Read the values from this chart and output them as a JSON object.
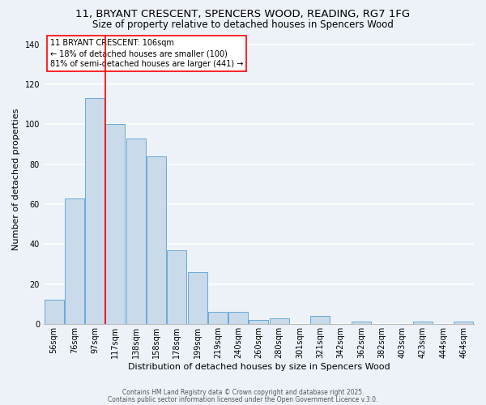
{
  "title1": "11, BRYANT CRESCENT, SPENCERS WOOD, READING, RG7 1FG",
  "title2": "Size of property relative to detached houses in Spencers Wood",
  "xlabel": "Distribution of detached houses by size in Spencers Wood",
  "ylabel": "Number of detached properties",
  "bar_labels": [
    "56sqm",
    "76sqm",
    "97sqm",
    "117sqm",
    "138sqm",
    "158sqm",
    "178sqm",
    "199sqm",
    "219sqm",
    "240sqm",
    "260sqm",
    "280sqm",
    "301sqm",
    "321sqm",
    "342sqm",
    "362sqm",
    "382sqm",
    "403sqm",
    "423sqm",
    "444sqm",
    "464sqm"
  ],
  "bar_values": [
    12,
    63,
    113,
    100,
    93,
    84,
    37,
    26,
    6,
    6,
    2,
    3,
    0,
    4,
    0,
    1,
    0,
    0,
    1,
    0,
    1
  ],
  "bar_color": "#c9daea",
  "bar_edge_color": "#6aaad4",
  "background_color": "#edf2f8",
  "grid_color": "#ffffff",
  "red_line_x": 2.5,
  "ylim": [
    0,
    145
  ],
  "yticks": [
    0,
    20,
    40,
    60,
    80,
    100,
    120,
    140
  ],
  "annotation_title": "11 BRYANT CRESCENT: 106sqm",
  "annotation_line1": "← 18% of detached houses are smaller (100)",
  "annotation_line2": "81% of semi-detached houses are larger (441) →",
  "footer1": "Contains HM Land Registry data © Crown copyright and database right 2025.",
  "footer2": "Contains public sector information licensed under the Open Government Licence v.3.0.",
  "title_fontsize": 9.5,
  "subtitle_fontsize": 8.5,
  "annotation_fontsize": 7.0,
  "axis_label_fontsize": 8,
  "tick_fontsize": 7,
  "footer_fontsize": 5.5
}
